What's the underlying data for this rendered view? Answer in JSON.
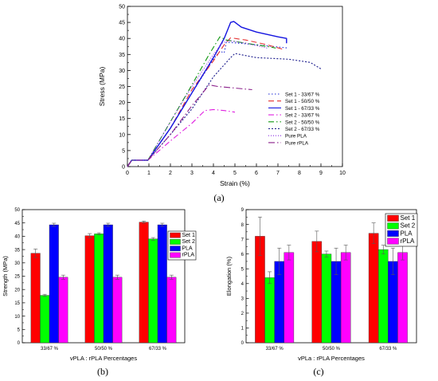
{
  "chart_data": [
    {
      "panel": "(a)",
      "type": "line",
      "xlabel": "Strain (%)",
      "ylabel": "Stress (MPa)",
      "xlim": [
        0,
        10
      ],
      "ylim": [
        0,
        50
      ],
      "xticks": [
        "0",
        "1",
        "2",
        "3",
        "4",
        "5",
        "6",
        "7",
        "8",
        "9",
        "10"
      ],
      "yticks": [
        "0",
        "5",
        "10",
        "15",
        "20",
        "25",
        "30",
        "35",
        "40",
        "45",
        "50"
      ],
      "grid": false,
      "legend_position": "bottom-right",
      "series": [
        {
          "name": "Set 1 - 33/67 %",
          "color": "#1f2bd6",
          "dash": "1.5,2.5",
          "points": [
            [
              0,
              0
            ],
            [
              0.2,
              2
            ],
            [
              0.95,
              2
            ],
            [
              2,
              12
            ],
            [
              3,
              23
            ],
            [
              4,
              33.5
            ],
            [
              4.3,
              36
            ],
            [
              4.5,
              35.5
            ],
            [
              4.6,
              38.8
            ],
            [
              5,
              38.6
            ],
            [
              6,
              38
            ],
            [
              7.5,
              37
            ]
          ]
        },
        {
          "name": "Set 1 - 50/50 %",
          "color": "#e53030",
          "dash": "7,4",
          "points": [
            [
              0,
              0
            ],
            [
              0.2,
              2
            ],
            [
              0.95,
              2
            ],
            [
              2,
              12
            ],
            [
              3,
              24
            ],
            [
              4,
              33
            ],
            [
              4.5,
              38
            ],
            [
              4.8,
              40.2
            ],
            [
              5.5,
              39.5
            ],
            [
              6.5,
              38
            ],
            [
              7.3,
              36.5
            ]
          ]
        },
        {
          "name": "Set 1 - 67/33 %",
          "color": "#1414e0",
          "dash": "",
          "points": [
            [
              0,
              0
            ],
            [
              0.2,
              2
            ],
            [
              0.95,
              2
            ],
            [
              2,
              12
            ],
            [
              3,
              23
            ],
            [
              4,
              34
            ],
            [
              4.5,
              40
            ],
            [
              4.8,
              45
            ],
            [
              4.95,
              45.3
            ],
            [
              5.3,
              43.5
            ],
            [
              6,
              42
            ],
            [
              7,
              40.5
            ],
            [
              7.4,
              40
            ],
            [
              7.4,
              38.5
            ]
          ]
        },
        {
          "name": "Set 2 - 33/67 %",
          "color": "#e020e0",
          "dash": "7,3,1.5,3",
          "points": [
            [
              0,
              0
            ],
            [
              0.2,
              2
            ],
            [
              0.95,
              2
            ],
            [
              2,
              8
            ],
            [
              3,
              13.5
            ],
            [
              3.6,
              17.5
            ],
            [
              4,
              17.8
            ],
            [
              4.5,
              17.5
            ],
            [
              5,
              17
            ]
          ]
        },
        {
          "name": "Set 2 - 50/50 %",
          "color": "#119911",
          "dash": "7,3,1.5,3",
          "points": [
            [
              0,
              0
            ],
            [
              0.2,
              2
            ],
            [
              0.95,
              2
            ],
            [
              2,
              14
            ],
            [
              3,
              25.5
            ],
            [
              3.8,
              35
            ],
            [
              4.3,
              40.5
            ],
            [
              4.6,
              39.5
            ],
            [
              5.5,
              38.5
            ],
            [
              6.5,
              37.5
            ],
            [
              6.9,
              37
            ]
          ]
        },
        {
          "name": "Set 2 - 67/33 %",
          "color": "#1a1a8c",
          "dash": "2,2",
          "points": [
            [
              0,
              0
            ],
            [
              0.2,
              2
            ],
            [
              0.95,
              2
            ],
            [
              2,
              10
            ],
            [
              3,
              18
            ],
            [
              4,
              28
            ],
            [
              4.8,
              34
            ],
            [
              5,
              35.3
            ],
            [
              6,
              34
            ],
            [
              7.5,
              33.5
            ],
            [
              8.5,
              32.5
            ],
            [
              9,
              30.5
            ]
          ]
        },
        {
          "name": "Pure PLA",
          "color": "#8a2be2",
          "dash": "1,2",
          "points": [
            [
              0,
              0
            ],
            [
              0.2,
              2
            ],
            [
              0.95,
              2
            ],
            [
              2,
              14
            ],
            [
              3,
              25
            ],
            [
              4,
              35
            ],
            [
              4.4,
              38.5
            ],
            [
              4.7,
              39.3
            ],
            [
              5.5,
              38.5
            ],
            [
              6.5,
              37
            ]
          ]
        },
        {
          "name": "Pure rPLA",
          "color": "#8a1f8a",
          "dash": "8,3,1.5,3",
          "points": [
            [
              0,
              0
            ],
            [
              0.2,
              2
            ],
            [
              0.95,
              2
            ],
            [
              2,
              10
            ],
            [
              3,
              19
            ],
            [
              3.5,
              23
            ],
            [
              3.8,
              25.5
            ],
            [
              4.2,
              25
            ],
            [
              5,
              24.5
            ],
            [
              5.8,
              24
            ]
          ]
        }
      ]
    },
    {
      "panel": "(b)",
      "type": "bar",
      "xlabel": "vPLA : rPLA Percentages",
      "ylabel": "Strength (MPa)",
      "ylim": [
        0,
        50
      ],
      "yticks": [
        "0",
        "5",
        "10",
        "15",
        "20",
        "25",
        "30",
        "35",
        "40",
        "45",
        "50"
      ],
      "categories": [
        "33/67 %",
        "50/50 %",
        "67/33 %"
      ],
      "legend_position": "top-right",
      "series": [
        {
          "name": "Set 1",
          "color": "#ff0000",
          "values": [
            33.6,
            40.2,
            45.3
          ],
          "errors": [
            1.6,
            0.8,
            0.4
          ]
        },
        {
          "name": "Set 2",
          "color": "#00ff00",
          "values": [
            17.8,
            40.9,
            39.0
          ],
          "errors": [
            0.4,
            0.4,
            0.5
          ]
        },
        {
          "name": "PLA",
          "color": "#0000ff",
          "values": [
            44.3,
            44.3,
            44.3
          ],
          "errors": [
            0.6,
            0.6,
            0.6
          ]
        },
        {
          "name": "rPLA",
          "color": "#ff00ff",
          "values": [
            24.6,
            24.6,
            24.6
          ],
          "errors": [
            0.8,
            0.8,
            0.8
          ]
        }
      ]
    },
    {
      "panel": "(c)",
      "type": "bar",
      "xlabel": "vPLa : rPLA Percentages",
      "ylabel": "Elongation (%)",
      "ylim": [
        0,
        9
      ],
      "yticks": [
        "0",
        "1",
        "2",
        "3",
        "4",
        "5",
        "6",
        "7",
        "8",
        "9"
      ],
      "categories": [
        "33/67 %",
        "50/50 %",
        "67/33 %"
      ],
      "legend_position": "top-right",
      "series": [
        {
          "name": "Set 1",
          "color": "#ff0000",
          "values": [
            7.2,
            6.85,
            7.4
          ],
          "errors": [
            1.3,
            0.7,
            0.7
          ]
        },
        {
          "name": "Set 2",
          "color": "#00ff00",
          "values": [
            4.4,
            6.0,
            6.3
          ],
          "errors": [
            0.4,
            0.2,
            0.3
          ]
        },
        {
          "name": "PLA",
          "color": "#0000ff",
          "values": [
            5.5,
            5.5,
            5.5
          ],
          "errors": [
            0.9,
            0.9,
            0.9
          ]
        },
        {
          "name": "rPLA",
          "color": "#ff00ff",
          "values": [
            6.1,
            6.1,
            6.1
          ],
          "errors": [
            0.5,
            0.5,
            0.5
          ]
        }
      ]
    }
  ]
}
